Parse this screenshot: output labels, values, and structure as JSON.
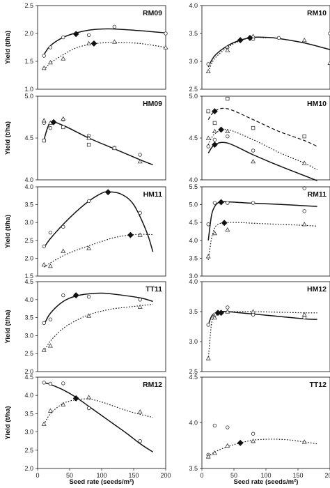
{
  "figure": {
    "ylabel": "Yield (t/ha)",
    "xlabel": "Seed rate (seeds/m²)"
  },
  "chart_data": [
    {
      "type": "line",
      "label": "RM09",
      "xlim": [
        0,
        200
      ],
      "ylim": [
        1.0,
        2.5
      ],
      "yticks": [
        "1.0",
        "1.5",
        "2.0",
        "2.5"
      ],
      "xticks": [],
      "show_ylabel": true,
      "show_xlabel": false,
      "series": [
        {
          "marker": "circle",
          "line": "solid",
          "x": [
            10,
            20,
            40,
            60,
            80,
            120,
            200
          ],
          "y": [
            1.6,
            1.75,
            1.93,
            2.0,
            1.97,
            2.12,
            2.0
          ],
          "curve_x": [
            10,
            20,
            40,
            60,
            80,
            100,
            120,
            160,
            200
          ],
          "curve_y": [
            1.62,
            1.78,
            1.93,
            2.01,
            2.06,
            2.08,
            2.08,
            2.05,
            2.01
          ]
        },
        {
          "marker": "triangle",
          "line": "dotted",
          "x": [
            10,
            20,
            40,
            80,
            120,
            200
          ],
          "y": [
            1.38,
            1.48,
            1.55,
            1.82,
            1.85,
            1.75
          ],
          "curve_x": [
            10,
            20,
            40,
            60,
            80,
            100,
            120,
            160,
            200
          ],
          "curve_y": [
            1.35,
            1.47,
            1.62,
            1.74,
            1.8,
            1.83,
            1.84,
            1.82,
            1.75
          ]
        },
        {
          "marker": "diamond",
          "line": "none",
          "x": [
            60,
            88
          ],
          "y": [
            1.99,
            1.82
          ]
        }
      ]
    },
    {
      "type": "line",
      "label": "RM10",
      "xlim": [
        0,
        200
      ],
      "ylim": [
        2.5,
        4.0
      ],
      "yticks": [
        "2.5",
        "3.0",
        "3.5",
        "4.0"
      ],
      "xticks": [],
      "show_ylabel": false,
      "show_xlabel": false,
      "series": [
        {
          "marker": "circle",
          "line": "solid",
          "x": [
            10,
            40,
            80,
            120,
            200
          ],
          "y": [
            2.95,
            3.25,
            3.4,
            3.42,
            3.5
          ],
          "curve_x": [
            10,
            20,
            40,
            60,
            80,
            100,
            120,
            160,
            200
          ],
          "curve_y": [
            2.9,
            3.1,
            3.28,
            3.38,
            3.43,
            3.43,
            3.41,
            3.33,
            3.21
          ]
        },
        {
          "marker": "triangle",
          "line": "dotted",
          "x": [
            10,
            40,
            80,
            160,
            200
          ],
          "y": [
            2.82,
            3.2,
            3.45,
            3.38,
            2.97
          ],
          "curve_x": [
            10,
            20,
            40,
            60,
            80,
            100
          ],
          "curve_y": [
            2.82,
            3.05,
            3.25,
            3.37,
            3.43,
            3.42
          ]
        },
        {
          "marker": "diamond",
          "line": "none",
          "x": [
            60,
            75
          ],
          "y": [
            3.38,
            3.42
          ]
        }
      ]
    },
    {
      "type": "line",
      "label": "HM09",
      "xlim": [
        0,
        200
      ],
      "ylim": [
        4.0,
        5.0
      ],
      "yticks": [
        "4.0",
        "4.5",
        "5.0"
      ],
      "xticks": [],
      "show_ylabel": true,
      "show_xlabel": false,
      "series": [
        {
          "marker": "circle",
          "line": "solid",
          "x": [
            10,
            20,
            40,
            80,
            120,
            160
          ],
          "y": [
            4.68,
            4.62,
            4.72,
            4.53,
            4.38,
            4.3
          ],
          "curve_x": [
            10,
            20,
            40,
            80,
            120,
            160,
            180
          ],
          "curve_y": [
            4.48,
            4.68,
            4.65,
            4.5,
            4.37,
            4.24,
            4.18
          ]
        },
        {
          "marker": "triangle",
          "line": "none",
          "x": [
            10,
            20,
            40,
            80,
            120,
            160
          ],
          "y": [
            4.71,
            4.68,
            4.73,
            4.5,
            4.38,
            4.22
          ],
          "curve_x": [],
          "curve_y": []
        },
        {
          "marker": "square",
          "line": "none",
          "x": [
            10,
            40,
            80,
            120
          ],
          "y": [
            4.47,
            4.63,
            4.42,
            4.38
          ],
          "curve_x": [],
          "curve_y": []
        },
        {
          "marker": "diamond",
          "line": "none",
          "x": [
            25
          ],
          "y": [
            4.69
          ]
        }
      ]
    },
    {
      "type": "line",
      "label": "HM10",
      "xlim": [
        0,
        200
      ],
      "ylim": [
        4.0,
        5.0
      ],
      "yticks": [
        "4.0",
        "4.5",
        "5.0"
      ],
      "xticks": [],
      "show_ylabel": false,
      "show_xlabel": false,
      "series": [
        {
          "marker": "circle",
          "line": "solid",
          "x": [
            10,
            20,
            40,
            80,
            160
          ],
          "y": [
            4.4,
            4.48,
            4.52,
            4.35,
            3.9
          ],
          "curve_x": [
            10,
            20,
            40,
            80,
            120,
            160,
            180
          ],
          "curve_y": [
            4.32,
            4.42,
            4.44,
            4.3,
            4.17,
            4.05,
            3.99
          ]
        },
        {
          "marker": "triangle",
          "line": "dotted",
          "x": [
            10,
            20,
            40,
            80,
            160
          ],
          "y": [
            4.5,
            4.58,
            4.58,
            4.22,
            4.2
          ],
          "curve_x": [
            10,
            20,
            40,
            80,
            120,
            160,
            180
          ],
          "curve_y": [
            4.42,
            4.55,
            4.6,
            4.48,
            4.33,
            4.2,
            4.12
          ]
        },
        {
          "marker": "square",
          "line": "dashed",
          "x": [
            10,
            20,
            40,
            80,
            160
          ],
          "y": [
            4.82,
            4.68,
            4.97,
            4.62,
            4.52
          ],
          "curve_x": [
            10,
            20,
            40,
            80,
            120,
            160,
            180
          ],
          "curve_y": [
            4.72,
            4.82,
            4.85,
            4.72,
            4.58,
            4.47,
            4.4
          ]
        },
        {
          "marker": "diamond",
          "line": "none",
          "x": [
            20,
            20,
            30
          ],
          "y": [
            4.82,
            4.42,
            4.6
          ]
        }
      ]
    },
    {
      "type": "line",
      "label": "HM11",
      "xlim": [
        0,
        200
      ],
      "ylim": [
        1.5,
        4.0
      ],
      "yticks": [
        "1.5",
        "2.0",
        "2.5",
        "3.0",
        "3.5",
        "4.0"
      ],
      "xticks": [],
      "show_ylabel": true,
      "show_xlabel": false,
      "series": [
        {
          "marker": "circle",
          "line": "solid",
          "x": [
            10,
            20,
            40,
            80,
            110,
            160
          ],
          "y": [
            2.33,
            2.72,
            2.88,
            3.6,
            3.85,
            3.27
          ],
          "curve_x": [
            10,
            20,
            40,
            60,
            80,
            100,
            110,
            130,
            150,
            170,
            180
          ],
          "curve_y": [
            2.3,
            2.55,
            2.95,
            3.3,
            3.6,
            3.82,
            3.86,
            3.8,
            3.5,
            2.75,
            2.18
          ]
        },
        {
          "marker": "triangle",
          "line": "dotted",
          "x": [
            10,
            20,
            40,
            80,
            160
          ],
          "y": [
            1.82,
            1.78,
            2.2,
            2.28,
            2.65
          ],
          "curve_x": [
            10,
            20,
            40,
            60,
            80,
            100,
            120,
            140,
            160,
            180
          ],
          "curve_y": [
            1.75,
            1.87,
            2.07,
            2.22,
            2.35,
            2.47,
            2.58,
            2.64,
            2.67,
            2.66
          ]
        },
        {
          "marker": "diamond",
          "line": "none",
          "x": [
            110,
            145
          ],
          "y": [
            3.85,
            2.65
          ]
        }
      ]
    },
    {
      "type": "line",
      "label": "RM11",
      "xlim": [
        0,
        200
      ],
      "ylim": [
        3.0,
        5.5
      ],
      "yticks": [
        "3.0",
        "3.5",
        "4.0",
        "4.5",
        "5.0",
        "5.5"
      ],
      "xticks": [],
      "show_ylabel": false,
      "show_xlabel": false,
      "series": [
        {
          "marker": "circle",
          "line": "solid",
          "x": [
            10,
            20,
            40,
            80,
            160
          ],
          "y": [
            4.45,
            5.05,
            5.05,
            5.05,
            4.82
          ],
          "curve_x": [
            10,
            15,
            20,
            25,
            30,
            40,
            60,
            80,
            120,
            160,
            180
          ],
          "curve_y": [
            4.0,
            4.7,
            4.95,
            5.05,
            5.08,
            5.08,
            5.06,
            5.04,
            5.01,
            4.97,
            4.95
          ]
        },
        {
          "marker": "triangle",
          "line": "dotted",
          "x": [
            10,
            20,
            40,
            160
          ],
          "y": [
            3.55,
            4.2,
            4.3,
            4.45
          ],
          "curve_x": [
            10,
            15,
            20,
            25,
            30,
            40,
            60,
            80,
            120,
            160,
            180
          ],
          "curve_y": [
            3.45,
            4.05,
            4.35,
            4.45,
            4.48,
            4.5,
            4.5,
            4.48,
            4.45,
            4.42,
            4.4
          ]
        },
        {
          "marker": "diamond",
          "line": "none",
          "x": [
            30,
            35
          ],
          "y": [
            5.07,
            4.49
          ]
        }
      ]
    },
    {
      "type": "line",
      "label": "TT11",
      "xlim": [
        0,
        200
      ],
      "ylim": [
        2.0,
        4.5
      ],
      "yticks": [
        "2.0",
        "2.5",
        "3.0",
        "3.5",
        "4.0",
        "4.5"
      ],
      "xticks": [],
      "show_ylabel": true,
      "show_xlabel": false,
      "series": [
        {
          "marker": "circle",
          "line": "solid",
          "x": [
            10,
            20,
            40,
            80,
            160
          ],
          "y": [
            3.35,
            3.45,
            4.12,
            4.08,
            4.0
          ],
          "curve_x": [
            10,
            20,
            40,
            60,
            80,
            100,
            120,
            160,
            180
          ],
          "curve_y": [
            3.3,
            3.62,
            3.95,
            4.1,
            4.16,
            4.18,
            4.15,
            4.05,
            3.95
          ]
        },
        {
          "marker": "triangle",
          "line": "dotted",
          "x": [
            10,
            20,
            80,
            160
          ],
          "y": [
            2.6,
            2.72,
            3.55,
            3.8
          ],
          "curve_x": [
            10,
            20,
            40,
            60,
            80,
            100,
            120,
            160,
            180
          ],
          "curve_y": [
            2.55,
            2.85,
            3.2,
            3.42,
            3.58,
            3.68,
            3.75,
            3.83,
            3.87
          ]
        },
        {
          "marker": "diamond",
          "line": "none",
          "x": [
            60
          ],
          "y": [
            4.12
          ]
        }
      ]
    },
    {
      "type": "line",
      "label": "HM12",
      "xlim": [
        0,
        200
      ],
      "ylim": [
        2.5,
        4.0
      ],
      "yticks": [
        "2.5",
        "3.0",
        "3.5",
        "4.0"
      ],
      "xticks": [],
      "show_ylabel": false,
      "show_xlabel": false,
      "series": [
        {
          "marker": "circle",
          "line": "solid",
          "x": [
            10,
            20,
            40,
            80,
            160
          ],
          "y": [
            3.28,
            3.45,
            3.57,
            3.45,
            3.4
          ],
          "curve_x": [
            10,
            15,
            20,
            30,
            40,
            60,
            80,
            120,
            160,
            180
          ],
          "curve_y": [
            3.28,
            3.42,
            3.47,
            3.5,
            3.5,
            3.48,
            3.46,
            3.42,
            3.38,
            3.37
          ]
        },
        {
          "marker": "triangle",
          "line": "dotted",
          "x": [
            10,
            20,
            40,
            80,
            160
          ],
          "y": [
            2.72,
            3.4,
            3.5,
            3.5,
            3.45
          ],
          "curve_x": [
            10,
            15,
            20,
            30,
            40,
            60,
            80,
            120,
            160,
            180
          ],
          "curve_y": [
            2.7,
            3.3,
            3.45,
            3.5,
            3.5,
            3.5,
            3.5,
            3.49,
            3.48,
            3.48
          ]
        },
        {
          "marker": "diamond",
          "line": "none",
          "x": [
            25,
            30
          ],
          "y": [
            3.48,
            3.48
          ]
        }
      ]
    },
    {
      "type": "line",
      "label": "RM12",
      "xlim": [
        0,
        200
      ],
      "ylim": [
        2.0,
        4.5
      ],
      "yticks": [
        "2.0",
        "2.5",
        "3.0",
        "3.5",
        "4.0",
        "4.5"
      ],
      "xticks": [
        "0",
        "50",
        "100",
        "150",
        "200"
      ],
      "show_ylabel": true,
      "show_xlabel": true,
      "series": [
        {
          "marker": "circle",
          "line": "solid",
          "x": [
            10,
            20,
            40,
            80,
            160
          ],
          "y": [
            4.35,
            4.32,
            4.33,
            3.65,
            2.75
          ],
          "curve_x": [
            10,
            20,
            40,
            60,
            80,
            100,
            120,
            140,
            160,
            180
          ],
          "curve_y": [
            4.35,
            4.3,
            4.15,
            3.95,
            3.7,
            3.45,
            3.2,
            2.95,
            2.68,
            2.45
          ]
        },
        {
          "marker": "triangle",
          "line": "dotted",
          "x": [
            10,
            20,
            40,
            80,
            160
          ],
          "y": [
            3.22,
            3.58,
            3.75,
            3.95,
            3.55
          ],
          "curve_x": [
            10,
            20,
            40,
            60,
            80,
            100,
            120,
            140,
            160,
            180
          ],
          "curve_y": [
            3.2,
            3.5,
            3.78,
            3.88,
            3.9,
            3.82,
            3.7,
            3.58,
            3.48,
            3.4
          ]
        },
        {
          "marker": "diamond",
          "line": "none",
          "x": [
            60
          ],
          "y": [
            3.92
          ]
        }
      ]
    },
    {
      "type": "line",
      "label": "TT12",
      "xlim": [
        0,
        200
      ],
      "ylim": [
        3.5,
        4.5
      ],
      "yticks": [
        "3.5",
        "4.0",
        "4.5"
      ],
      "xticks": [
        "0",
        "50",
        "100",
        "150",
        "200"
      ],
      "show_ylabel": false,
      "show_xlabel": true,
      "series": [
        {
          "marker": "circle",
          "line": "none",
          "x": [
            10,
            20,
            40,
            80
          ],
          "y": [
            3.65,
            3.97,
            3.95,
            3.88
          ],
          "curve_x": [],
          "curve_y": []
        },
        {
          "marker": "triangle",
          "line": "dotted",
          "x": [
            10,
            20,
            40,
            80,
            160
          ],
          "y": [
            3.63,
            3.67,
            3.75,
            3.8,
            3.79
          ],
          "curve_x": [
            10,
            20,
            40,
            60,
            80,
            100,
            120,
            140,
            160,
            180
          ],
          "curve_y": [
            3.63,
            3.68,
            3.74,
            3.78,
            3.81,
            3.82,
            3.82,
            3.81,
            3.79,
            3.77
          ]
        },
        {
          "marker": "diamond",
          "line": "none",
          "x": [
            60
          ],
          "y": [
            3.78
          ]
        }
      ]
    }
  ]
}
